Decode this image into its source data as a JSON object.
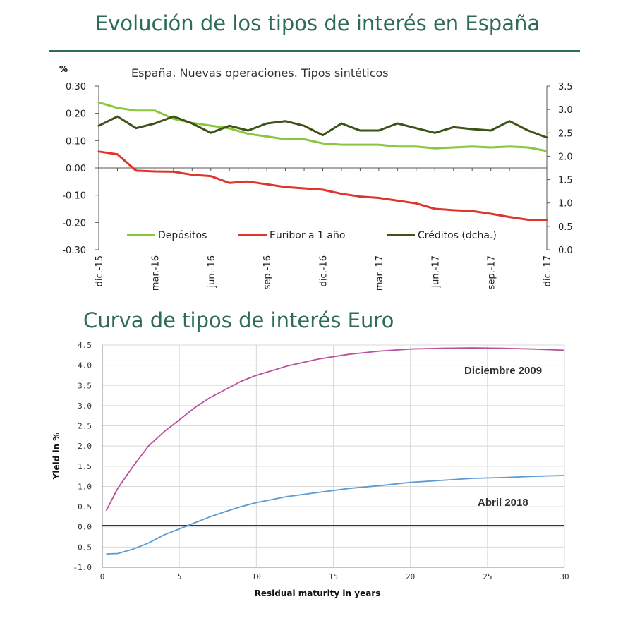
{
  "page": {
    "title_top": "Evolución de los tipos de interés en España",
    "title_bottom": "Curva de tipos de interés Euro"
  },
  "colors": {
    "title": "#2e6b5b",
    "depositos": "#8cc63f",
    "euribor": "#e0342c",
    "creditos": "#3d5318",
    "dic2009": "#b8509e",
    "abr2018": "#5b9bd5"
  },
  "chart_data": [
    {
      "type": "line",
      "subtitle": "España. Nuevas operaciones. Tipos sintéticos",
      "y_unit_label": "%",
      "x": [
        "2015-12",
        "2016-01",
        "2016-02",
        "2016-03",
        "2016-04",
        "2016-05",
        "2016-06",
        "2016-07",
        "2016-08",
        "2016-09",
        "2016-10",
        "2016-11",
        "2016-12",
        "2017-01",
        "2017-02",
        "2017-03",
        "2017-04",
        "2017-05",
        "2017-06",
        "2017-07",
        "2017-08",
        "2017-09",
        "2017-10",
        "2017-11",
        "2017-12"
      ],
      "x_tick_labels": [
        "dic.-15",
        "mar.-16",
        "jun.-16",
        "sep.-16",
        "dic.-16",
        "mar.-17",
        "jun.-17",
        "sep.-17",
        "dic.-17"
      ],
      "ylim_left": [
        -0.3,
        0.3
      ],
      "yticks_left": [
        "0.30",
        "0.20",
        "0.10",
        "0.00",
        "-0.10",
        "-0.20",
        "-0.30"
      ],
      "ylim_right": [
        0.0,
        3.5
      ],
      "yticks_right": [
        "3.5",
        "3.0",
        "2.5",
        "2.0",
        "1.5",
        "1.0",
        "0.5",
        "0.0"
      ],
      "legend_position": "bottom",
      "series": [
        {
          "name": "Depósitos",
          "axis": "left",
          "color": "#8cc63f",
          "values": [
            0.24,
            0.22,
            0.21,
            0.21,
            0.18,
            0.165,
            0.155,
            0.145,
            0.125,
            0.115,
            0.105,
            0.105,
            0.09,
            0.085,
            0.085,
            0.085,
            0.078,
            0.078,
            0.072,
            0.075,
            0.078,
            0.075,
            0.078,
            0.075,
            0.062
          ]
        },
        {
          "name": "Euribor a 1 año",
          "axis": "left",
          "color": "#e0342c",
          "values": [
            0.06,
            0.05,
            -0.01,
            -0.013,
            -0.014,
            -0.025,
            -0.03,
            -0.055,
            -0.05,
            -0.06,
            -0.07,
            -0.075,
            -0.08,
            -0.095,
            -0.105,
            -0.11,
            -0.12,
            -0.13,
            -0.15,
            -0.155,
            -0.158,
            -0.168,
            -0.18,
            -0.19,
            -0.19
          ]
        },
        {
          "name": "Créditos (dcha.)",
          "axis": "right",
          "color": "#3d5318",
          "values": [
            2.65,
            2.85,
            2.6,
            2.7,
            2.85,
            2.7,
            2.5,
            2.65,
            2.55,
            2.7,
            2.75,
            2.65,
            2.45,
            2.7,
            2.55,
            2.55,
            2.7,
            2.6,
            2.5,
            2.62,
            2.58,
            2.55,
            2.75,
            2.55,
            2.4
          ]
        }
      ]
    },
    {
      "type": "line",
      "xlabel": "Residual maturity in years",
      "ylabel": "Yield in %",
      "xlim": [
        0,
        30
      ],
      "ylim": [
        -1.0,
        4.5
      ],
      "xticks": [
        "0",
        "5",
        "10",
        "15",
        "20",
        "25",
        "30"
      ],
      "yticks": [
        "4.5",
        "4.0",
        "3.5",
        "3.0",
        "2.5",
        "2.0",
        "1.5",
        "1.0",
        "0.5",
        "0.0",
        "-0.5",
        "-1.0"
      ],
      "annotations": [
        "Diciembre 2009",
        "Abril 2018"
      ],
      "series": [
        {
          "name": "Diciembre 2009",
          "color": "#b8509e",
          "x": [
            0.25,
            1,
            2,
            3,
            4,
            5,
            6,
            7,
            8,
            9,
            10,
            12,
            14,
            16,
            18,
            20,
            22,
            24,
            26,
            28,
            30
          ],
          "values": [
            0.4,
            0.95,
            1.5,
            2.0,
            2.35,
            2.65,
            2.95,
            3.2,
            3.4,
            3.6,
            3.75,
            3.98,
            4.15,
            4.27,
            4.35,
            4.4,
            4.42,
            4.43,
            4.42,
            4.4,
            4.37
          ]
        },
        {
          "name": "Abril 2018",
          "color": "#5b9bd5",
          "x": [
            0.25,
            1,
            2,
            3,
            4,
            5,
            6,
            7,
            8,
            9,
            10,
            12,
            14,
            16,
            18,
            20,
            22,
            24,
            26,
            28,
            30
          ],
          "values": [
            -0.67,
            -0.66,
            -0.55,
            -0.4,
            -0.2,
            -0.05,
            0.1,
            0.25,
            0.38,
            0.5,
            0.6,
            0.75,
            0.85,
            0.95,
            1.02,
            1.1,
            1.15,
            1.2,
            1.22,
            1.25,
            1.27
          ]
        }
      ],
      "reference_line": {
        "y": 0.0
      }
    }
  ]
}
